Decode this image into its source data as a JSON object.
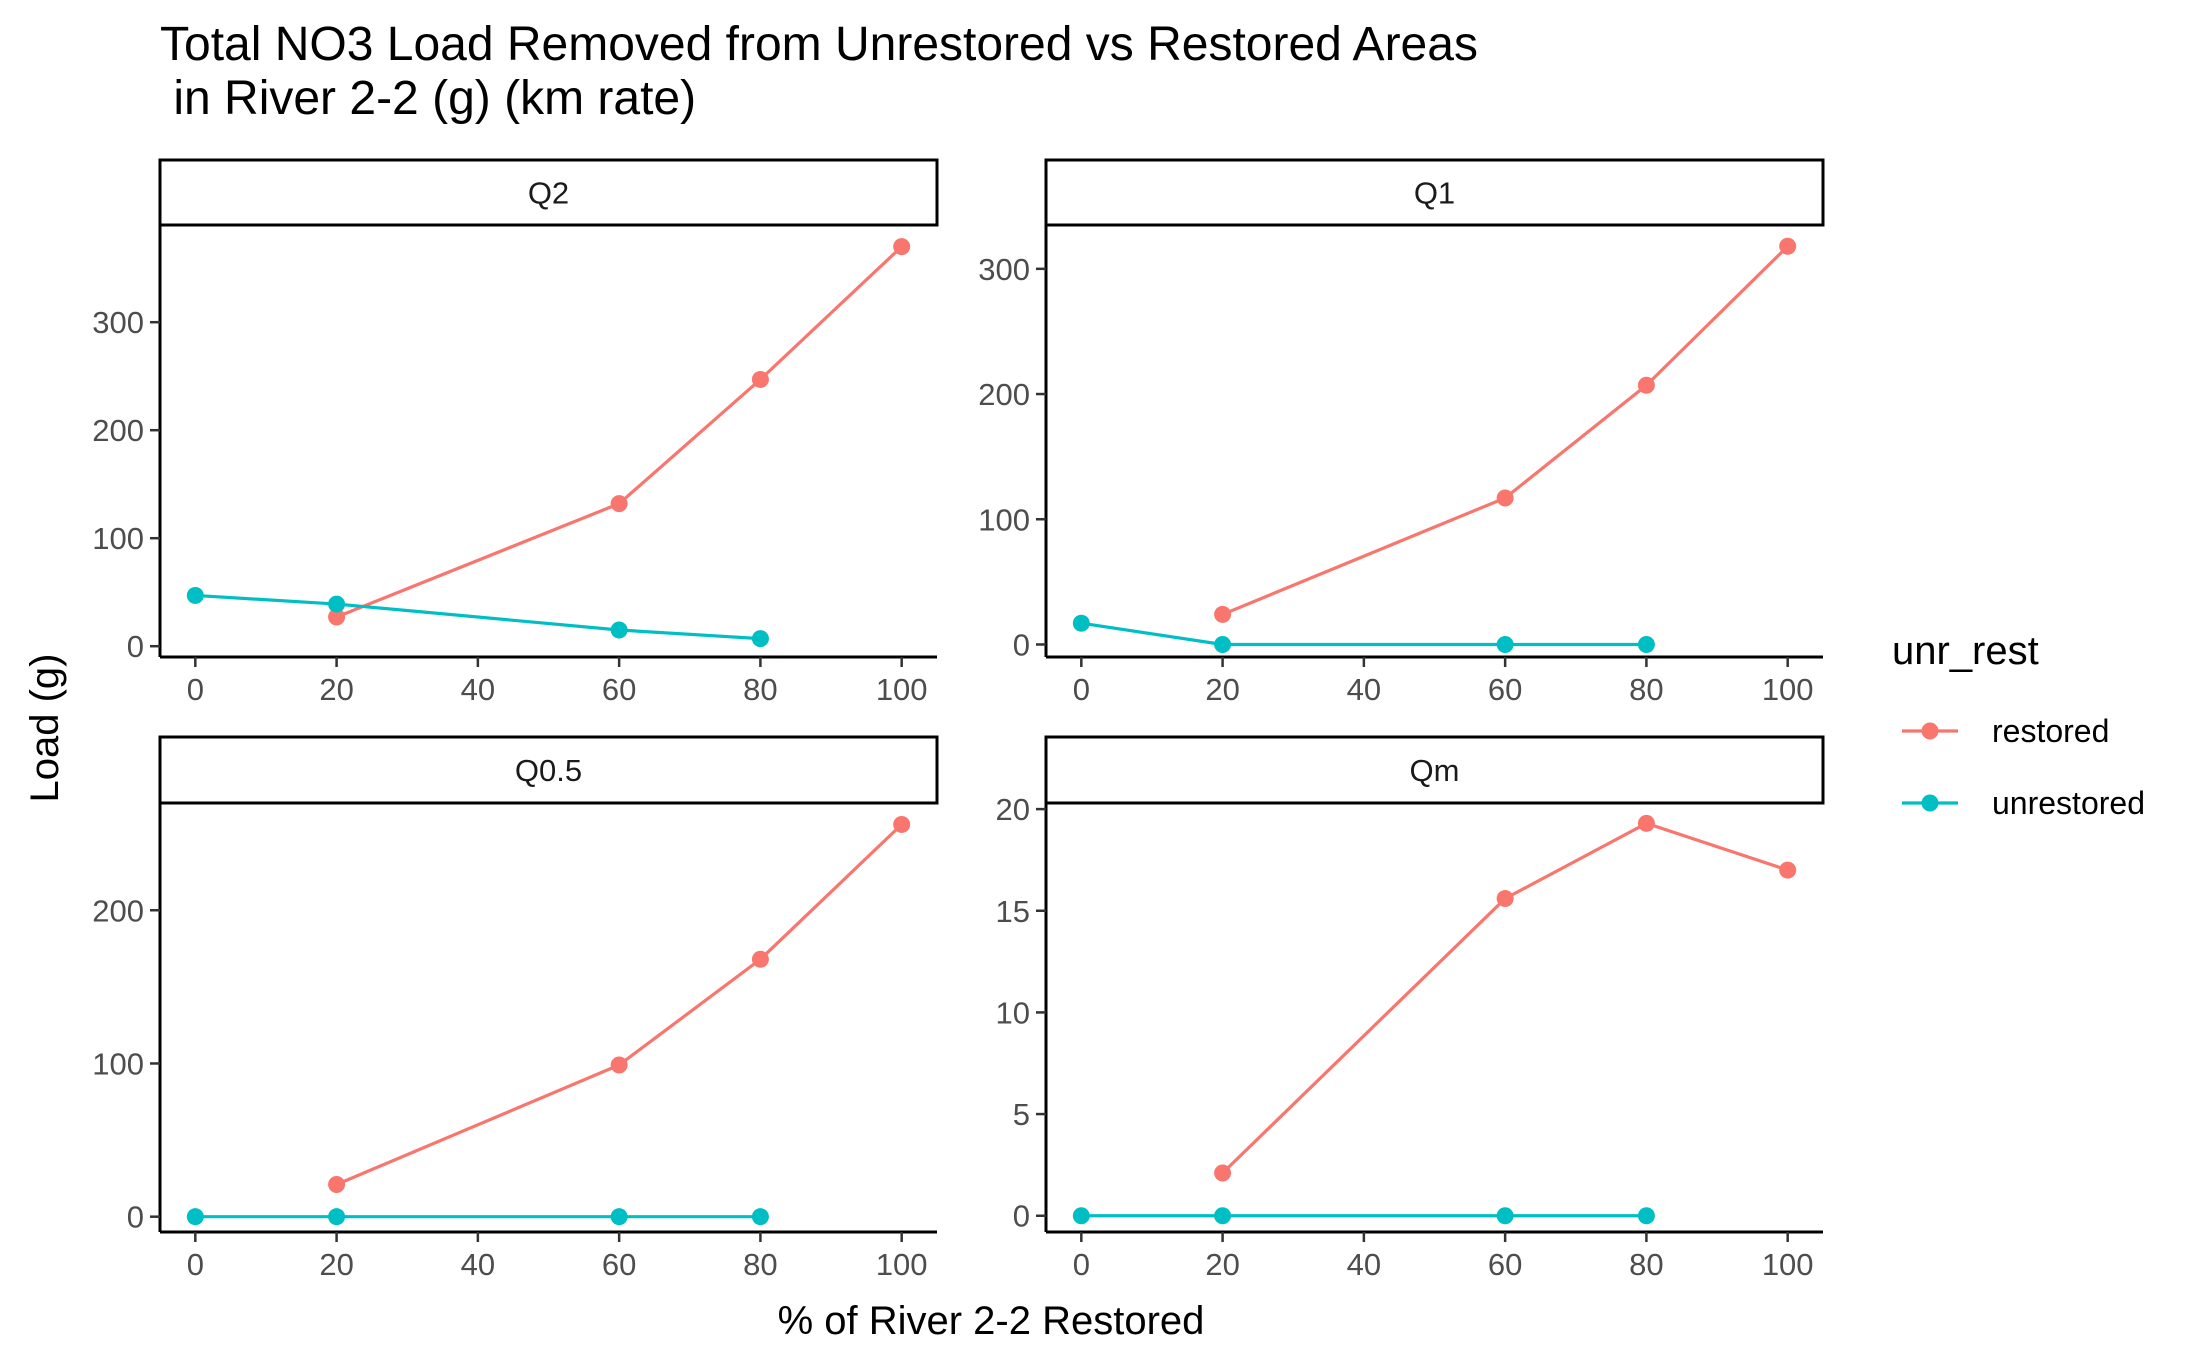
{
  "chart_data": {
    "type": "line",
    "title": "Total NO3 Load Removed from Unrestored vs Restored Areas\n in River 2-2 (g) (km rate)",
    "xlabel": "% of River 2-2 Restored",
    "ylabel": "Load (g)",
    "legend": {
      "title": "unr_rest",
      "placement": "right",
      "entries": [
        {
          "name": "restored",
          "color": "#F8766D"
        },
        {
          "name": "unrestored",
          "color": "#00BFC4"
        }
      ]
    },
    "grid": false,
    "panels": [
      {
        "label": "Q2",
        "xlim": [
          -5,
          105
        ],
        "ylim": [
          -10,
          390
        ],
        "xticks": [
          0,
          20,
          40,
          60,
          80,
          100
        ],
        "yticks": [
          0,
          100,
          200,
          300
        ],
        "series": [
          {
            "name": "restored",
            "x": [
              20,
              60,
              80,
              100
            ],
            "y": [
              27,
              132,
              247,
              370
            ]
          },
          {
            "name": "unrestored",
            "x": [
              0,
              20,
              60,
              80
            ],
            "y": [
              47,
              39,
              15,
              7
            ]
          }
        ]
      },
      {
        "label": "Q1",
        "xlim": [
          -5,
          105
        ],
        "ylim": [
          -10,
          335
        ],
        "xticks": [
          0,
          20,
          40,
          60,
          80,
          100
        ],
        "yticks": [
          0,
          100,
          200,
          300
        ],
        "series": [
          {
            "name": "restored",
            "x": [
              20,
              60,
              80,
              100
            ],
            "y": [
              24,
              117,
              207,
              318
            ]
          },
          {
            "name": "unrestored",
            "x": [
              0,
              20,
              60,
              80
            ],
            "y": [
              17,
              0,
              0,
              0
            ]
          }
        ]
      },
      {
        "label": "Q0.5",
        "xlim": [
          -5,
          105
        ],
        "ylim": [
          -10,
          270
        ],
        "xticks": [
          0,
          20,
          40,
          60,
          80,
          100
        ],
        "yticks": [
          0,
          100,
          200
        ],
        "series": [
          {
            "name": "restored",
            "x": [
              20,
              60,
              80,
              100
            ],
            "y": [
              21,
              99,
              168,
              256
            ]
          },
          {
            "name": "unrestored",
            "x": [
              0,
              20,
              60,
              80
            ],
            "y": [
              0,
              0,
              0,
              0
            ]
          }
        ]
      },
      {
        "label": "Qm",
        "xlim": [
          -5,
          105
        ],
        "ylim": [
          -0.8,
          20.3
        ],
        "xticks": [
          0,
          20,
          40,
          60,
          80,
          100
        ],
        "yticks": [
          0,
          5,
          10,
          15,
          20
        ],
        "series": [
          {
            "name": "restored",
            "x": [
              20,
              60,
              80,
              100
            ],
            "y": [
              2.1,
              15.6,
              19.3,
              17.0
            ]
          },
          {
            "name": "unrestored",
            "x": [
              0,
              20,
              60,
              80
            ],
            "y": [
              0,
              0,
              0,
              0
            ]
          }
        ]
      }
    ]
  }
}
